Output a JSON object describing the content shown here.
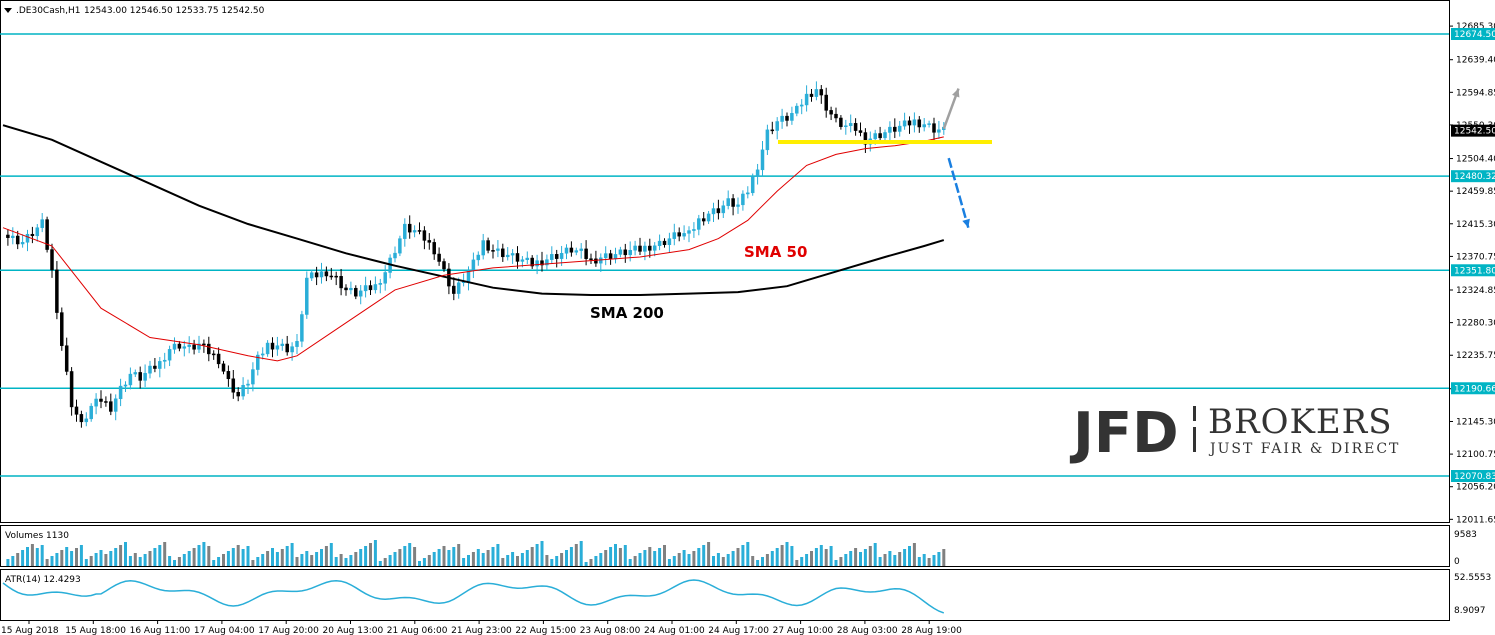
{
  "header": {
    "symbol": ".DE30Cash,H1",
    "ohlc": "12543.00 12546.50 12533.75 12542.50"
  },
  "colors": {
    "level_line": "#00b4c4",
    "sma50": "#e00000",
    "sma200": "#000000",
    "support_line": "#ffee00",
    "arrow_up": "#a0a0a0",
    "arrow_down": "#1a7fe0",
    "candle_up": "#2aaed8",
    "volume_bar": "#2aaed8",
    "volume_bar_down": "#808080",
    "atr_line": "#2aaed8"
  },
  "annotations": {
    "sma50": "SMA 50",
    "sma200": "SMA 200"
  },
  "brand": {
    "name": "JFD",
    "suffix": "BROKERS",
    "tagline": "JUST FAIR & DIRECT"
  },
  "subpanels": {
    "volumes_label": "Volumes 1130",
    "volumes_ticks": [
      "9583",
      "0"
    ],
    "atr_label": "ATR(14) 12.4293",
    "atr_ticks": [
      "52.5553",
      "8.9097"
    ]
  },
  "chart_data": {
    "type": "candlestick",
    "ylim": [
      12000,
      12700
    ],
    "y_ticks": [
      12685.3,
      12639.4,
      12594.85,
      12550.3,
      12504.4,
      12459.85,
      12415.3,
      12370.75,
      12324.85,
      12280.3,
      12235.75,
      12190.0,
      12145.3,
      12100.75,
      12056.2,
      12011.65
    ],
    "x_ticks": [
      "15 Aug 2018",
      "15 Aug 18:00",
      "16 Aug 11:00",
      "17 Aug 04:00",
      "17 Aug 20:00",
      "20 Aug 13:00",
      "21 Aug 06:00",
      "21 Aug 23:00",
      "22 Aug 15:00",
      "23 Aug 08:00",
      "24 Aug 01:00",
      "24 Aug 17:00",
      "27 Aug 10:00",
      "28 Aug 03:00",
      "28 Aug 19:00"
    ],
    "horizontal_levels": [
      12674.5,
      12480.32,
      12351.8,
      12190.66,
      12070.83
    ],
    "current_price": 12542.5,
    "support_level": 12527,
    "close_path": [
      [
        0,
        12400
      ],
      [
        4,
        12390
      ],
      [
        8,
        12415
      ],
      [
        10,
        12350
      ],
      [
        12,
        12250
      ],
      [
        14,
        12170
      ],
      [
        16,
        12140
      ],
      [
        18,
        12165
      ],
      [
        20,
        12175
      ],
      [
        22,
        12165
      ],
      [
        24,
        12190
      ],
      [
        26,
        12210
      ],
      [
        28,
        12205
      ],
      [
        30,
        12215
      ],
      [
        32,
        12225
      ],
      [
        34,
        12245
      ],
      [
        36,
        12250
      ],
      [
        38,
        12245
      ],
      [
        40,
        12250
      ],
      [
        42,
        12240
      ],
      [
        44,
        12230
      ],
      [
        46,
        12200
      ],
      [
        48,
        12180
      ],
      [
        50,
        12200
      ],
      [
        52,
        12230
      ],
      [
        54,
        12250
      ],
      [
        56,
        12250
      ],
      [
        58,
        12245
      ],
      [
        60,
        12250
      ],
      [
        62,
        12340
      ],
      [
        64,
        12345
      ],
      [
        66,
        12350
      ],
      [
        68,
        12340
      ],
      [
        70,
        12325
      ],
      [
        72,
        12320
      ],
      [
        74,
        12325
      ],
      [
        76,
        12330
      ],
      [
        78,
        12350
      ],
      [
        80,
        12380
      ],
      [
        82,
        12410
      ],
      [
        84,
        12405
      ],
      [
        86,
        12395
      ],
      [
        88,
        12380
      ],
      [
        90,
        12350
      ],
      [
        92,
        12320
      ],
      [
        94,
        12340
      ],
      [
        96,
        12360
      ],
      [
        98,
        12390
      ],
      [
        100,
        12380
      ],
      [
        102,
        12375
      ],
      [
        104,
        12370
      ],
      [
        106,
        12365
      ],
      [
        108,
        12360
      ],
      [
        110,
        12365
      ],
      [
        112,
        12370
      ],
      [
        114,
        12375
      ],
      [
        116,
        12380
      ],
      [
        118,
        12375
      ],
      [
        120,
        12365
      ],
      [
        122,
        12370
      ],
      [
        124,
        12372
      ],
      [
        126,
        12375
      ],
      [
        128,
        12378
      ],
      [
        130,
        12380
      ],
      [
        132,
        12385
      ],
      [
        134,
        12388
      ],
      [
        136,
        12395
      ],
      [
        138,
        12402
      ],
      [
        140,
        12400
      ],
      [
        142,
        12420
      ],
      [
        144,
        12430
      ],
      [
        146,
        12435
      ],
      [
        148,
        12445
      ],
      [
        150,
        12440
      ],
      [
        152,
        12460
      ],
      [
        154,
        12495
      ],
      [
        156,
        12540
      ],
      [
        158,
        12555
      ],
      [
        160,
        12560
      ],
      [
        162,
        12570
      ],
      [
        164,
        12590
      ],
      [
        166,
        12600
      ],
      [
        168,
        12575
      ],
      [
        170,
        12555
      ],
      [
        172,
        12548
      ],
      [
        174,
        12545
      ],
      [
        176,
        12530
      ],
      [
        178,
        12535
      ],
      [
        180,
        12540
      ],
      [
        182,
        12545
      ],
      [
        184,
        12550
      ],
      [
        186,
        12555
      ],
      [
        188,
        12552
      ],
      [
        190,
        12545
      ],
      [
        192,
        12542.5
      ]
    ],
    "sma50": [
      [
        0,
        12410
      ],
      [
        10,
        12385
      ],
      [
        20,
        12300
      ],
      [
        30,
        12260
      ],
      [
        40,
        12250
      ],
      [
        50,
        12235
      ],
      [
        56,
        12228
      ],
      [
        60,
        12235
      ],
      [
        70,
        12280
      ],
      [
        80,
        12325
      ],
      [
        90,
        12345
      ],
      [
        100,
        12355
      ],
      [
        110,
        12360
      ],
      [
        120,
        12365
      ],
      [
        130,
        12370
      ],
      [
        140,
        12380
      ],
      [
        146,
        12395
      ],
      [
        152,
        12420
      ],
      [
        158,
        12460
      ],
      [
        164,
        12495
      ],
      [
        170,
        12510
      ],
      [
        176,
        12518
      ],
      [
        182,
        12522
      ],
      [
        188,
        12528
      ],
      [
        192,
        12534
      ]
    ],
    "sma200": [
      [
        0,
        12550
      ],
      [
        10,
        12530
      ],
      [
        20,
        12500
      ],
      [
        30,
        12470
      ],
      [
        40,
        12440
      ],
      [
        50,
        12415
      ],
      [
        60,
        12395
      ],
      [
        70,
        12375
      ],
      [
        80,
        12358
      ],
      [
        90,
        12343
      ],
      [
        100,
        12328
      ],
      [
        110,
        12320
      ],
      [
        120,
        12318
      ],
      [
        130,
        12318
      ],
      [
        140,
        12320
      ],
      [
        150,
        12322
      ],
      [
        160,
        12330
      ],
      [
        170,
        12350
      ],
      [
        180,
        12370
      ],
      [
        188,
        12385
      ],
      [
        192,
        12393
      ]
    ],
    "arrows": [
      {
        "direction": "up",
        "from": [
          192,
          12545
        ],
        "to": [
          195,
          12600
        ]
      },
      {
        "direction": "down",
        "from": [
          193,
          12505
        ],
        "to": [
          197,
          12410
        ]
      }
    ]
  }
}
